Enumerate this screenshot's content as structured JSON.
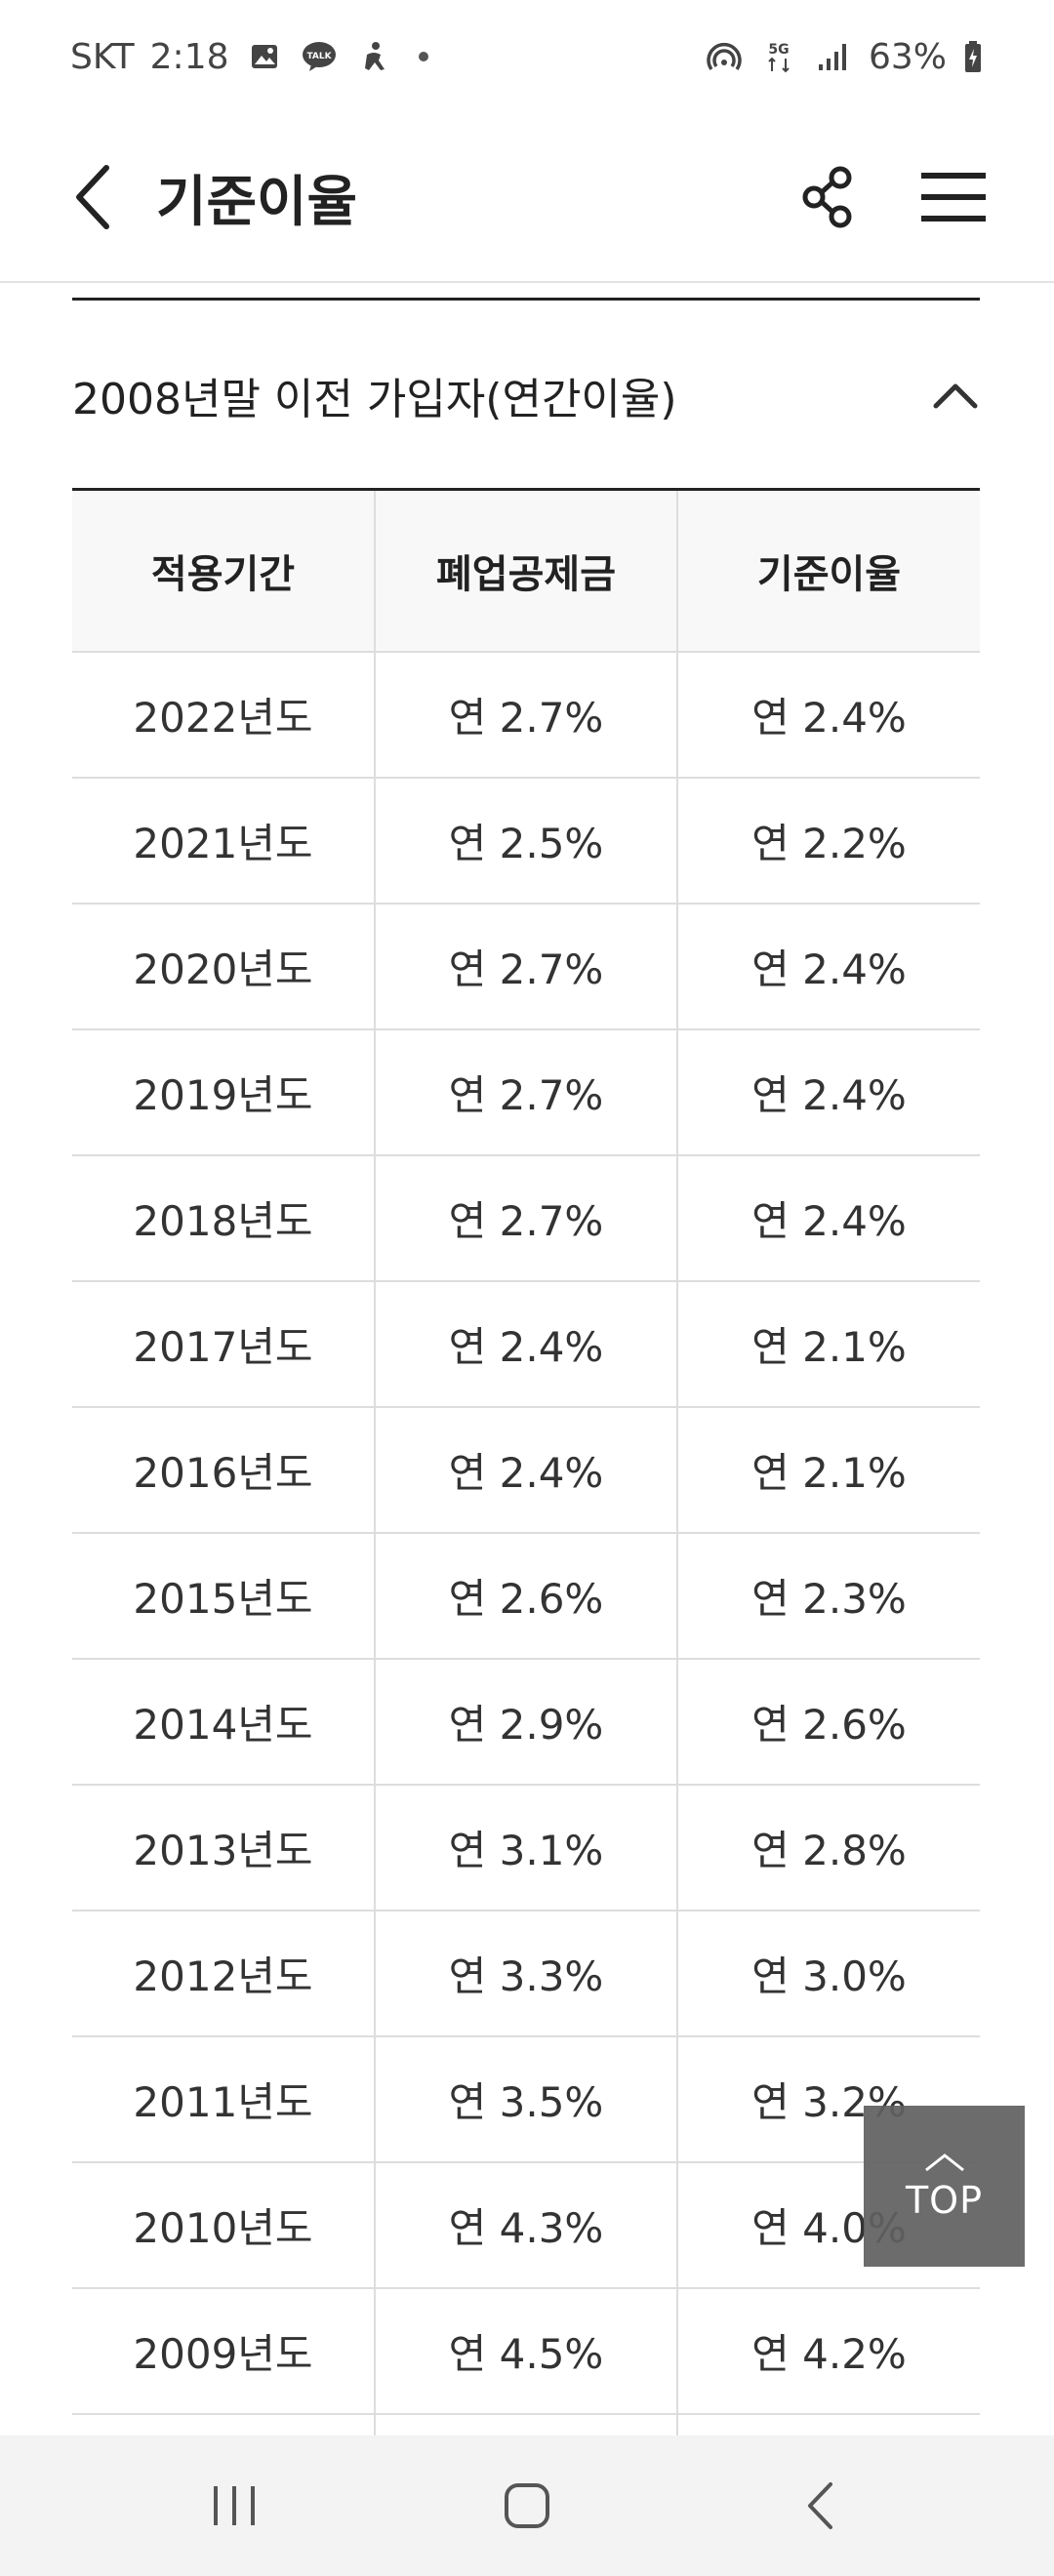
{
  "status_bar": {
    "carrier": "SKT",
    "time": "2:18",
    "network": "5G",
    "battery": "63%",
    "icons": [
      "image-icon",
      "kakaotalk-icon",
      "accessibility-icon",
      "dot-icon",
      "hotspot-icon",
      "network-5g-icon",
      "signal-icon",
      "battery-charging-icon"
    ]
  },
  "header": {
    "title": "기준이율",
    "back_icon": "back-arrow-icon",
    "share_icon": "share-icon",
    "menu_icon": "hamburger-menu-icon"
  },
  "section": {
    "title": "2008년말 이전 가입자(연간이율)",
    "expanded": true
  },
  "table": {
    "columns": [
      "적용기간",
      "폐업공제금",
      "기준이율"
    ],
    "rows": [
      [
        "2022년도",
        "연 2.7%",
        "연 2.4%"
      ],
      [
        "2021년도",
        "연 2.5%",
        "연 2.2%"
      ],
      [
        "2020년도",
        "연 2.7%",
        "연 2.4%"
      ],
      [
        "2019년도",
        "연 2.7%",
        "연 2.4%"
      ],
      [
        "2018년도",
        "연 2.7%",
        "연 2.4%"
      ],
      [
        "2017년도",
        "연 2.4%",
        "연 2.1%"
      ],
      [
        "2016년도",
        "연 2.4%",
        "연 2.1%"
      ],
      [
        "2015년도",
        "연 2.6%",
        "연 2.3%"
      ],
      [
        "2014년도",
        "연 2.9%",
        "연 2.6%"
      ],
      [
        "2013년도",
        "연 3.1%",
        "연 2.8%"
      ],
      [
        "2012년도",
        "연 3.3%",
        "연 3.0%"
      ],
      [
        "2011년도",
        "연 3.5%",
        "연 3.2%"
      ],
      [
        "2010년도",
        "연 4.3%",
        "연 4.0%"
      ],
      [
        "2009년도",
        "연 4.5%",
        "연 4.2%"
      ]
    ]
  },
  "top_button": {
    "label": "TOP"
  },
  "nav_bar": {
    "icons": [
      "recent-apps-icon",
      "home-icon",
      "back-icon"
    ]
  },
  "colors": {
    "text": "#222222",
    "border": "#dddddd",
    "header_bg": "#f8f8f8",
    "top_button_bg": "#606060"
  }
}
